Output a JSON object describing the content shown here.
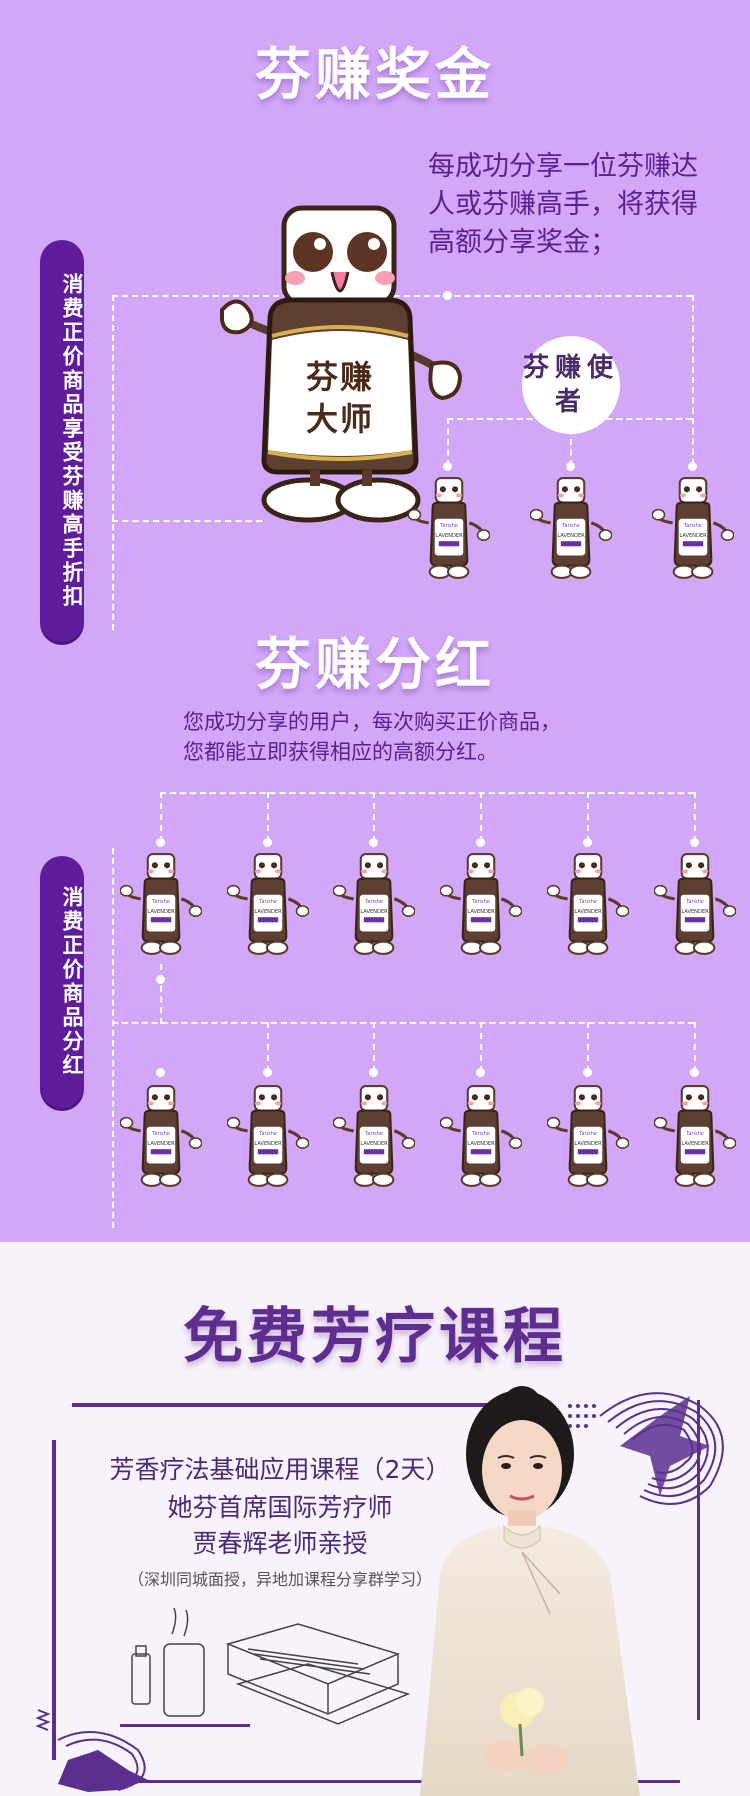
{
  "section1": {
    "title": "芬赚奖金",
    "description": "每成功分享一位芬赚达人或芬赚高手，将获得高额分享奖金；",
    "tag": "消费正价商品享受芬赚高手折扣",
    "master_label": "芬赚大师",
    "ambassador_badge": "芬赚使者"
  },
  "section2": {
    "title": "芬赚分红",
    "description_line1": "您成功分享的用户，每次购买正价商品，",
    "description_line2": "您都能立即获得相应的高额分红。",
    "tag": "消费正价商品分红"
  },
  "course": {
    "title": "免费芳疗课程",
    "line1": "芳香疗法基础应用课程（2天）",
    "line2": "她芬首席国际芳疗师",
    "line3": "贾春辉老师亲授",
    "note": "（深圳同城面授，异地加课程分享群学习）"
  },
  "mascot_product": "LAVENDER",
  "colors": {
    "bg_purple": "#d2a7f8",
    "deep_purple": "#5f1d9d",
    "course_bg": "#f8f2fb"
  }
}
